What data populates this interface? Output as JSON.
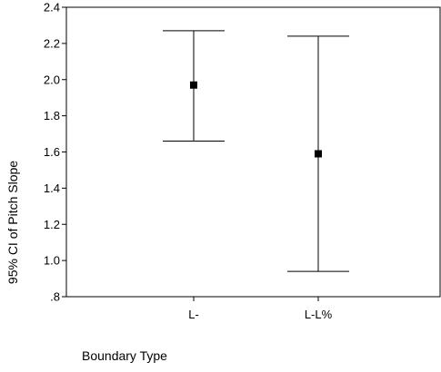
{
  "chart_data": {
    "type": "errorbar",
    "title": "",
    "xlabel": "Boundary Type",
    "ylabel": "95% CI of Pitch Slope",
    "categories": [
      "L-",
      "L-L%"
    ],
    "ylim": [
      0.8,
      2.4
    ],
    "yticks": [
      0.8,
      1.0,
      1.2,
      1.4,
      1.6,
      1.8,
      2.0,
      2.2,
      2.4
    ],
    "ytick_labels": [
      ".8",
      "1.0",
      "1.2",
      "1.4",
      "1.6",
      "1.8",
      "2.0",
      "2.2",
      "2.4"
    ],
    "series": [
      {
        "means": [
          1.97,
          1.59
        ],
        "lower": [
          1.66,
          0.94
        ],
        "upper": [
          2.27,
          2.24
        ]
      }
    ],
    "grid": false,
    "legend": false
  }
}
